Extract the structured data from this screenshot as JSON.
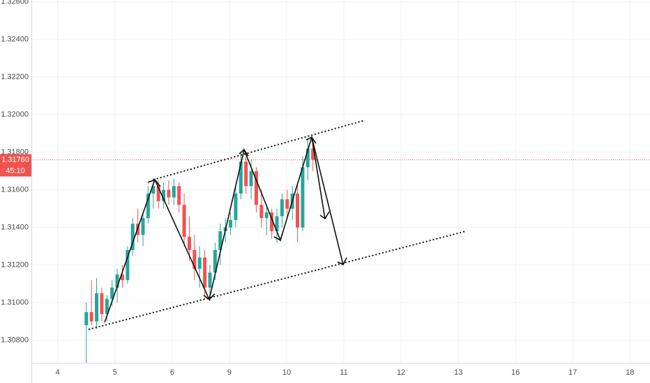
{
  "chart_data": {
    "type": "candlestick",
    "up_color": "#26a69a",
    "down_color": "#ef5350",
    "ylim": [
      1.3068,
      1.3261
    ],
    "yticks": [
      {
        "value": 1.326,
        "label": "1.32600"
      },
      {
        "value": 1.324,
        "label": "1.32400"
      },
      {
        "value": 1.322,
        "label": "1.32200"
      },
      {
        "value": 1.32,
        "label": "1.32000"
      },
      {
        "value": 1.318,
        "label": "1.31800"
      },
      {
        "value": 1.316,
        "label": "1.31600"
      },
      {
        "value": 1.314,
        "label": "1.31400"
      },
      {
        "value": 1.312,
        "label": "1.31200"
      },
      {
        "value": 1.31,
        "label": "1.31000"
      },
      {
        "value": 1.308,
        "label": "1.30800"
      }
    ],
    "xlim": [
      -0.46,
      10.35
    ],
    "xticks": [
      {
        "value": 0,
        "label": "4"
      },
      {
        "value": 1,
        "label": "5"
      },
      {
        "value": 2,
        "label": "6"
      },
      {
        "value": 3,
        "label": "9"
      },
      {
        "value": 4,
        "label": "10"
      },
      {
        "value": 5,
        "label": "11"
      },
      {
        "value": 6,
        "label": "12"
      },
      {
        "value": 7,
        "label": "13"
      },
      {
        "value": 8,
        "label": "16"
      },
      {
        "value": 9,
        "label": "17"
      },
      {
        "value": 10,
        "label": "18"
      }
    ],
    "grid": true,
    "x": [
      0.5,
      0.59,
      0.68,
      0.77,
      0.86,
      0.95,
      1.04,
      1.13,
      1.22,
      1.31,
      1.4,
      1.49,
      1.58,
      1.67,
      1.76,
      1.85,
      1.94,
      2.03,
      2.12,
      2.21,
      2.3,
      2.39,
      2.48,
      2.57,
      2.66,
      2.75,
      2.84,
      2.93,
      3.02,
      3.11,
      3.2,
      3.29,
      3.38,
      3.47,
      3.56,
      3.65,
      3.74,
      3.83,
      3.92,
      4.01,
      4.1,
      4.19,
      4.28,
      4.37,
      4.46
    ],
    "open": [
      1.3088,
      1.3095,
      1.309,
      1.3105,
      1.3094,
      1.3102,
      1.3108,
      1.3115,
      1.3112,
      1.3128,
      1.3142,
      1.3136,
      1.3145,
      1.3158,
      1.3162,
      1.3154,
      1.316,
      1.3156,
      1.3162,
      1.3152,
      1.3135,
      1.3128,
      1.3118,
      1.3124,
      1.3108,
      1.3116,
      1.3128,
      1.3138,
      1.314,
      1.3144,
      1.3158,
      1.3175,
      1.3162,
      1.317,
      1.3152,
      1.3145,
      1.3148,
      1.3138,
      1.3146,
      1.3155,
      1.315,
      1.3158,
      1.314,
      1.3172,
      1.3182
    ],
    "high": [
      1.31,
      1.3112,
      1.3113,
      1.3108,
      1.3104,
      1.3112,
      1.3118,
      1.312,
      1.313,
      1.3145,
      1.315,
      1.3148,
      1.3162,
      1.3166,
      1.3165,
      1.3164,
      1.3165,
      1.3166,
      1.3164,
      1.3158,
      1.3146,
      1.3136,
      1.313,
      1.3128,
      1.312,
      1.3132,
      1.3142,
      1.3145,
      1.3148,
      1.3162,
      1.318,
      1.3178,
      1.3176,
      1.3172,
      1.316,
      1.3152,
      1.315,
      1.315,
      1.3158,
      1.316,
      1.3162,
      1.3164,
      1.3178,
      1.3187,
      1.3184
    ],
    "low": [
      1.3068,
      1.3088,
      1.3086,
      1.309,
      1.309,
      1.3098,
      1.31,
      1.3108,
      1.311,
      1.3125,
      1.3132,
      1.313,
      1.3142,
      1.315,
      1.315,
      1.315,
      1.3152,
      1.3152,
      1.3148,
      1.313,
      1.3122,
      1.3112,
      1.3108,
      1.3102,
      1.3101,
      1.3112,
      1.312,
      1.3132,
      1.3136,
      1.314,
      1.3155,
      1.3158,
      1.3155,
      1.3148,
      1.314,
      1.3136,
      1.3134,
      1.3132,
      1.314,
      1.3145,
      1.3144,
      1.3132,
      1.3138,
      1.3165,
      1.317
    ],
    "close": [
      1.3095,
      1.309,
      1.3105,
      1.3094,
      1.3102,
      1.3108,
      1.3115,
      1.3112,
      1.3128,
      1.3142,
      1.3136,
      1.3145,
      1.3158,
      1.3162,
      1.3154,
      1.316,
      1.3156,
      1.3162,
      1.3152,
      1.3135,
      1.3128,
      1.3118,
      1.3124,
      1.3108,
      1.3116,
      1.3128,
      1.3138,
      1.314,
      1.3144,
      1.3158,
      1.3175,
      1.3162,
      1.317,
      1.3152,
      1.3145,
      1.3148,
      1.3138,
      1.3146,
      1.3155,
      1.315,
      1.3158,
      1.314,
      1.3172,
      1.3182,
      1.3176
    ],
    "last_price": 1.3176,
    "last_price_label": "1.31760",
    "countdown": "45:10"
  }
}
